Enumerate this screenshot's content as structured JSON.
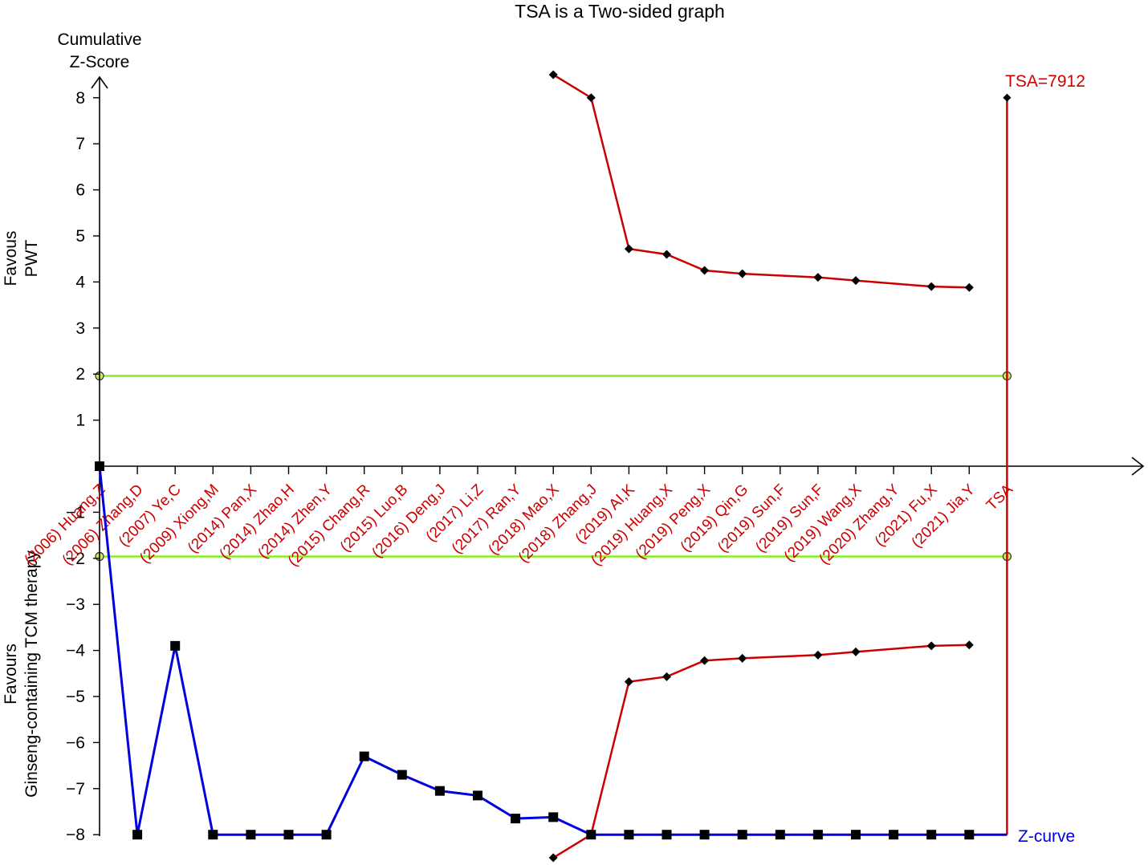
{
  "chart_data": {
    "type": "line",
    "title": "TSA is a Two-sided graph",
    "ylabel_top": [
      "Cumulative",
      "Z-Score"
    ],
    "ylabel_upper": [
      "Favous",
      "PWT"
    ],
    "ylabel_lower": [
      "Favours",
      "Ginseng-containing TCM therapy"
    ],
    "y_ticks": [
      -8,
      -7,
      -6,
      -5,
      -4,
      -3,
      -2,
      -1,
      1,
      2,
      3,
      4,
      5,
      6,
      7,
      8
    ],
    "ylim": [
      -8,
      8.5
    ],
    "studies": [
      "(2006) Huang,Z",
      "(2006) Zhang,D",
      "(2007) Ye,C",
      "(2009) Xiong,M",
      "(2014) Pan,X",
      "(2014) Zhao,H",
      "(2014) Zhen,Y",
      "(2015) Chang,R",
      "(2015) Luo,B",
      "(2016) Deng,J",
      "(2017) Li,Z",
      "(2017) Ran,Y",
      "(2018) Mao,X",
      "(2018) Zhang,J",
      "(2019) AI,K",
      "(2019) Huang,X",
      "(2019) Peng,X",
      "(2019) Qin,G",
      "(2019) Sun,F",
      "(2019) Sun,F",
      "(2019) Wang,X",
      "(2020) Zhang,Y",
      "(2021) Fu,X",
      "(2021) Jia,Y",
      "TSA"
    ],
    "z_curve": {
      "name": "Z-curve",
      "color": "#0000dd",
      "values": [
        0,
        -8,
        -3.9,
        -8,
        -8,
        -8,
        -8,
        -6.3,
        -6.7,
        -7.05,
        -7.15,
        -7.65,
        -7.62,
        -8,
        -8,
        -8,
        -8,
        -8,
        -8,
        -8,
        -8,
        -8,
        -8,
        -8,
        -8
      ]
    },
    "upper_boundary": {
      "color": "#cc0000",
      "points": [
        [
          12,
          8.5
        ],
        [
          13,
          8
        ],
        [
          14,
          4.72
        ],
        [
          15,
          4.6
        ],
        [
          16,
          4.25
        ],
        [
          17,
          4.18
        ],
        [
          19,
          4.1
        ],
        [
          20,
          4.03
        ],
        [
          22,
          3.9
        ],
        [
          23,
          3.88
        ]
      ]
    },
    "lower_boundary": {
      "color": "#cc0000",
      "points": [
        [
          12,
          -8.5
        ],
        [
          13,
          -8
        ],
        [
          14,
          -4.68
        ],
        [
          15,
          -4.57
        ],
        [
          16,
          -4.22
        ],
        [
          17,
          -4.17
        ],
        [
          19,
          -4.1
        ],
        [
          20,
          -4.03
        ],
        [
          22,
          -3.9
        ],
        [
          23,
          -3.88
        ]
      ]
    },
    "conventional_boundary": {
      "color": "#88ee22",
      "upper": 1.96,
      "lower": -1.96
    },
    "tsa": {
      "label": "TSA=7912",
      "color": "#cc0000",
      "top": 8,
      "bottom": -8
    }
  }
}
